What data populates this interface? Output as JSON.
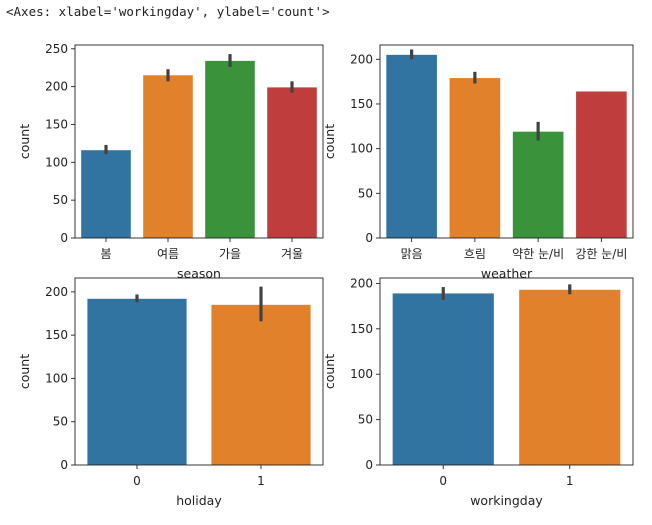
{
  "header": {
    "repr": "<Axes: xlabel='workingday', ylabel='count'>"
  },
  "chart_data": [
    {
      "type": "bar",
      "title": "",
      "xlabel": "season",
      "ylabel": "count",
      "categories": [
        "봄",
        "여름",
        "가을",
        "겨울"
      ],
      "values": [
        116,
        215,
        234,
        199
      ],
      "error_low": [
        111,
        207,
        226,
        192
      ],
      "error_high": [
        123,
        223,
        243,
        207
      ],
      "ylim": [
        0,
        255
      ],
      "yticks": [
        0,
        50,
        100,
        150,
        200,
        250
      ],
      "colors": [
        "#3274a1",
        "#e1812c",
        "#3a923a",
        "#c03d3e"
      ],
      "grid": false
    },
    {
      "type": "bar",
      "title": "",
      "xlabel": "weather",
      "ylabel": "count",
      "categories": [
        "맑음",
        "흐림",
        "약한 눈/비",
        "강한 눈/비"
      ],
      "values": [
        205,
        179,
        119,
        164
      ],
      "error_low": [
        200,
        173,
        109,
        164
      ],
      "error_high": [
        211,
        186,
        130,
        164
      ],
      "ylim": [
        0,
        216
      ],
      "yticks": [
        0,
        50,
        100,
        150,
        200
      ],
      "colors": [
        "#3274a1",
        "#e1812c",
        "#3a923a",
        "#c03d3e"
      ],
      "grid": false
    },
    {
      "type": "bar",
      "title": "",
      "xlabel": "holiday",
      "ylabel": "count",
      "categories": [
        "0",
        "1"
      ],
      "values": [
        192,
        185
      ],
      "error_low": [
        188,
        166
      ],
      "error_high": [
        197,
        206
      ],
      "ylim": [
        0,
        216
      ],
      "yticks": [
        0,
        50,
        100,
        150,
        200
      ],
      "colors": [
        "#3274a1",
        "#e1812c"
      ],
      "grid": false
    },
    {
      "type": "bar",
      "title": "",
      "xlabel": "workingday",
      "ylabel": "count",
      "categories": [
        "0",
        "1"
      ],
      "values": [
        189,
        193
      ],
      "error_low": [
        182,
        188
      ],
      "error_high": [
        196,
        199
      ],
      "ylim": [
        0,
        206
      ],
      "yticks": [
        0,
        50,
        100,
        150,
        200
      ],
      "colors": [
        "#3274a1",
        "#e1812c"
      ],
      "grid": false
    }
  ]
}
